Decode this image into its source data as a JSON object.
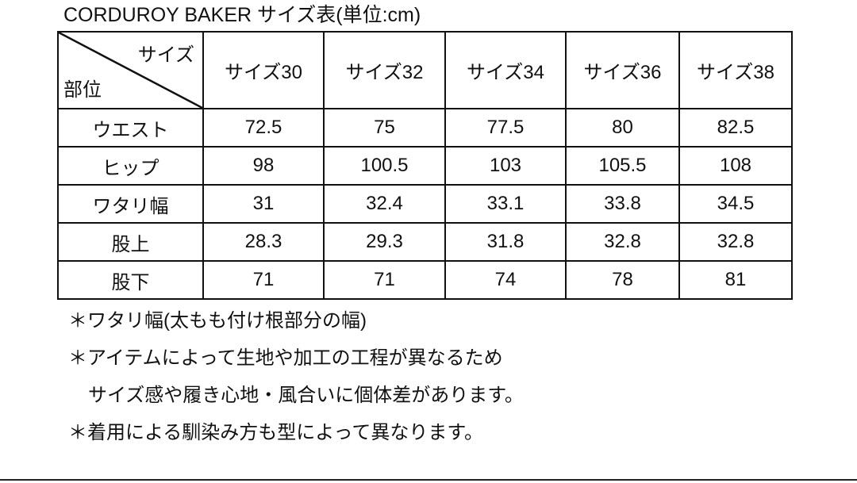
{
  "title": "CORDUROY BAKER サイズ表(単位:cm)",
  "table": {
    "corner_top": "サイズ",
    "corner_bottom": "部位",
    "columns": [
      "サイズ30",
      "サイズ32",
      "サイズ34",
      "サイズ36",
      "サイズ38"
    ],
    "rows": [
      {
        "label": "ウエスト",
        "values": [
          "72.5",
          "75",
          "77.5",
          "80",
          "82.5"
        ]
      },
      {
        "label": "ヒップ",
        "values": [
          "98",
          "100.5",
          "103",
          "105.5",
          "108"
        ]
      },
      {
        "label": "ワタリ幅",
        "values": [
          "31",
          "32.4",
          "33.1",
          "33.8",
          "34.5"
        ]
      },
      {
        "label": "股上",
        "values": [
          "28.3",
          "29.3",
          "31.8",
          "32.8",
          "32.8"
        ]
      },
      {
        "label": "股下",
        "values": [
          "71",
          "71",
          "74",
          "78",
          "81"
        ]
      }
    ]
  },
  "notes": [
    "＊ワタリ幅(太もも付け根部分の幅)",
    "＊アイテムによって生地や加工の工程が異なるため",
    "サイズ感や履き心地・風合いに個体差があります。",
    "＊着用による馴染み方も型によって異なります。"
  ]
}
